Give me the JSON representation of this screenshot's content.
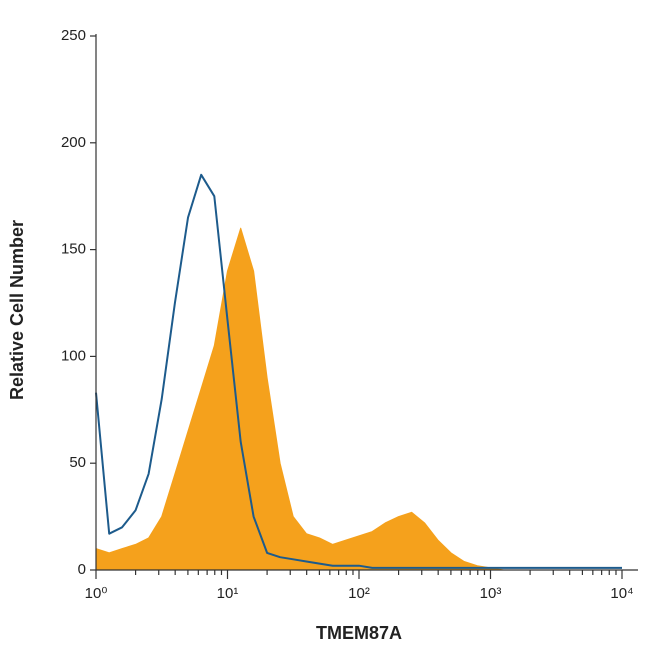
{
  "chart_data": {
    "type": "line",
    "x_label": "TMEM87A",
    "y_label": "Relative Cell Number",
    "x_scale": "log",
    "xlim": [
      1,
      10000
    ],
    "ylim": [
      0,
      250
    ],
    "xticks": [
      {
        "value": 1,
        "label": "10⁰"
      },
      {
        "value": 10,
        "label": "10¹"
      },
      {
        "value": 100,
        "label": "10²"
      },
      {
        "value": 1000,
        "label": "10³"
      },
      {
        "value": 10000,
        "label": "10⁴"
      }
    ],
    "yticks": [
      0,
      50,
      100,
      150,
      200,
      250
    ],
    "x": [
      1,
      1.26,
      1.58,
      2,
      2.51,
      3.16,
      3.98,
      5.01,
      6.31,
      7.94,
      10,
      12.6,
      15.8,
      20,
      25.1,
      31.6,
      39.8,
      50.1,
      63.1,
      79.4,
      100,
      126,
      158,
      200,
      251,
      316,
      398,
      501,
      631,
      794,
      1000,
      1259,
      1585,
      1995,
      2512,
      3162,
      3981,
      5012,
      6310,
      7943,
      10000
    ],
    "series": [
      {
        "color": "#f5a11c",
        "fill": true,
        "values": [
          10,
          8,
          10,
          12,
          15,
          25,
          45,
          65,
          85,
          105,
          140,
          160,
          140,
          90,
          50,
          25,
          17,
          15,
          12,
          14,
          16,
          18,
          22,
          25,
          27,
          22,
          14,
          8,
          4,
          2,
          1,
          0,
          0,
          0,
          0,
          0,
          0,
          0,
          0,
          0,
          0
        ]
      },
      {
        "color": "#1d5b8c",
        "fill": false,
        "values": [
          83,
          17,
          20,
          28,
          45,
          80,
          125,
          165,
          185,
          175,
          117,
          60,
          25,
          8,
          6,
          5,
          4,
          3,
          2,
          2,
          2,
          1,
          1,
          1,
          1,
          1,
          1,
          1,
          1,
          1,
          1,
          1,
          1,
          1,
          1,
          1,
          1,
          1,
          1,
          1,
          1
        ]
      }
    ]
  }
}
